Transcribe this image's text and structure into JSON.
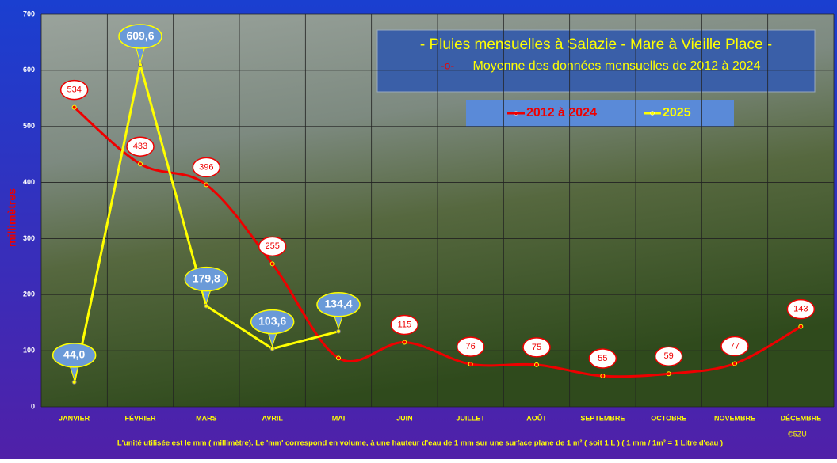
{
  "chart_data": {
    "type": "line",
    "title": "- Pluies mensuelles à Salazie - Mare à Vieille Place -",
    "subtitle": "Moyenne des données mensuelles de 2012 à 2024",
    "y_label": "millimètres",
    "note": "L'unité utilisée est le mm ( millimètre). Le 'mm' correspond en volume, à une hauteur d'eau de 1 mm sur une surface plane de 1 m² ( soit 1 L )     ( 1 mm / 1m² = 1 Litre d'eau )",
    "credit": "©5ZU",
    "categories": [
      "JANVIER",
      "FÉVRIER",
      "MARS",
      "AVRIL",
      "MAI",
      "JUIN",
      "JUILLET",
      "AOÛT",
      "SEPTEMBRE",
      "OCTOBRE",
      "NOVEMBRE",
      "DÉCEMBRE"
    ],
    "series": [
      {
        "name": "2012 à 2024",
        "color": "#ee0000",
        "smooth": true,
        "values": [
          534,
          433,
          396,
          255,
          87,
          115,
          76,
          75,
          55,
          59,
          77,
          143
        ],
        "value_labels": [
          "534",
          "433",
          "396",
          "255",
          null,
          "115",
          "76",
          "75",
          "55",
          "59",
          "77",
          "143"
        ]
      },
      {
        "name": "2025",
        "color": "#ffff00",
        "smooth": false,
        "values": [
          44.0,
          609.6,
          179.8,
          103.6,
          134.4,
          null,
          null,
          null,
          null,
          null,
          null,
          null
        ],
        "value_labels": [
          "44,0",
          "609,6",
          "179,8",
          "103,6",
          "134,4",
          null,
          null,
          null,
          null,
          null,
          null,
          null
        ]
      }
    ],
    "ylim": [
      0,
      700
    ],
    "yticks": [
      0,
      100,
      200,
      300,
      400,
      500,
      600,
      700
    ],
    "grid": true
  }
}
